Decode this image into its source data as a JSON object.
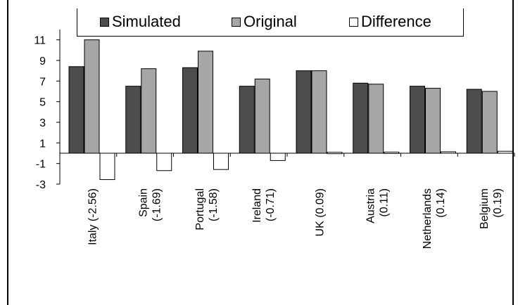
{
  "chart_data": {
    "type": "bar",
    "categories": [
      [
        "Italy (-2.56)"
      ],
      [
        "Spain",
        "(-1.69)"
      ],
      [
        "Portugal",
        "(-1.58)"
      ],
      [
        "Ireland",
        "(-0.71)"
      ],
      [
        "UK (0.09)"
      ],
      [
        "Austria",
        "(0.11)"
      ],
      [
        "Netherlands",
        "(0.14)"
      ],
      [
        "Belgium",
        "(0.19)"
      ]
    ],
    "series": [
      {
        "name": "Simulated",
        "color": "#4d4d4d",
        "values": [
          8.4,
          6.5,
          8.3,
          6.5,
          8.0,
          6.8,
          6.5,
          6.2
        ]
      },
      {
        "name": "Original",
        "color": "#a6a6a6",
        "values": [
          11.0,
          8.2,
          9.9,
          7.2,
          8.0,
          6.7,
          6.3,
          6.0
        ]
      },
      {
        "name": "Difference",
        "color": "#ffffff",
        "values": [
          -2.56,
          -1.69,
          -1.58,
          -0.71,
          0.09,
          0.11,
          0.14,
          0.19
        ]
      }
    ],
    "yticks": [
      "11",
      "9",
      "7",
      "5",
      "3",
      "1",
      "-1",
      "-3"
    ],
    "ylim": [
      -3,
      12
    ],
    "grid": false,
    "legend_position": "top"
  }
}
